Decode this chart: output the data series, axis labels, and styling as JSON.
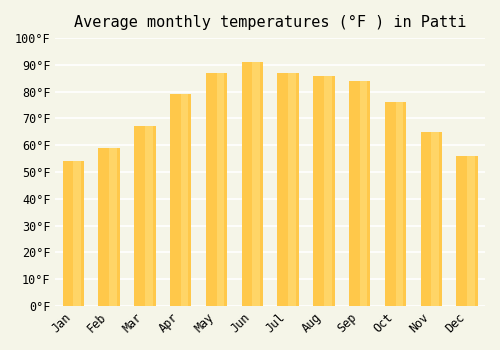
{
  "title": "Average monthly temperatures (°F ) in Patti",
  "months": [
    "Jan",
    "Feb",
    "Mar",
    "Apr",
    "May",
    "Jun",
    "Jul",
    "Aug",
    "Sep",
    "Oct",
    "Nov",
    "Dec"
  ],
  "values": [
    54,
    59,
    67,
    79,
    87,
    91,
    87,
    86,
    84,
    76,
    65,
    56
  ],
  "bar_color_top": "#FFA500",
  "bar_color_bottom": "#FFD580",
  "ylim": [
    0,
    100
  ],
  "yticks": [
    0,
    10,
    20,
    30,
    40,
    50,
    60,
    70,
    80,
    90,
    100
  ],
  "ytick_labels": [
    "0°F",
    "10°F",
    "20°F",
    "30°F",
    "40°F",
    "50°F",
    "60°F",
    "70°F",
    "80°F",
    "90°F",
    "100°F"
  ],
  "background_color": "#f5f5e8",
  "grid_color": "#ffffff",
  "title_fontsize": 11,
  "tick_fontsize": 8.5
}
